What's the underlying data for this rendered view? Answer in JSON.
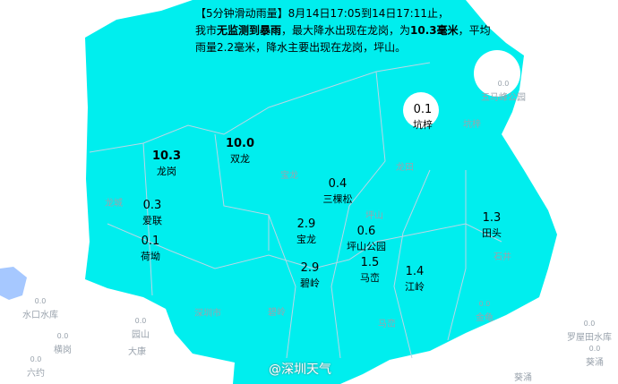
{
  "header": {
    "line1": "【5分钟滑动雨量】8月14日17:05到14日17:11止，",
    "line2_a": "我市",
    "line2_b": "无监测到暴雨",
    "line2_c": "，最大降水出现在龙岗，为",
    "line2_d": "10.3毫米",
    "line2_e": "，平均",
    "line3": "雨量2.2毫米，降水主要出现在龙岗，坪山。"
  },
  "colors": {
    "rain_fill": "#00eeee",
    "background": "#ffffff",
    "water": "#a6c8ff"
  },
  "stations": [
    {
      "name": "龙岗",
      "value": "10.3"
    },
    {
      "name": "双龙",
      "value": "10.0"
    },
    {
      "name": "坑梓",
      "value": "0.1"
    },
    {
      "name": "三棵松",
      "value": "0.4"
    },
    {
      "name": "爱联",
      "value": "0.3"
    },
    {
      "name": "荷坳",
      "value": "0.1"
    },
    {
      "name": "宝龙",
      "value": "2.9"
    },
    {
      "name": "坪山公园",
      "value": "0.6"
    },
    {
      "name": "田头",
      "value": "1.3"
    },
    {
      "name": "碧岭",
      "value": "2.9"
    },
    {
      "name": "马峦",
      "value": "1.5"
    },
    {
      "name": "江岭",
      "value": "1.4"
    }
  ],
  "background_places": [
    {
      "name": "五马峰公园",
      "value": "0.0"
    },
    {
      "name": "坑梓"
    },
    {
      "name": "龙田"
    },
    {
      "name": "宝龙"
    },
    {
      "name": "坪山"
    },
    {
      "name": "石井"
    },
    {
      "name": "金龟",
      "value": "0.0"
    },
    {
      "name": "深圳市"
    },
    {
      "name": "碧岭"
    },
    {
      "name": "马峦"
    },
    {
      "name": "龙城"
    },
    {
      "name": "园山",
      "value": "0.0"
    },
    {
      "name": "大康"
    },
    {
      "name": "水口水库",
      "value": "0.0"
    },
    {
      "name": "横岗",
      "value": "0.0"
    },
    {
      "name": "六约",
      "value": "0.0"
    },
    {
      "name": "罗屋田水库",
      "value": "0.0"
    },
    {
      "name": "葵涌",
      "value": "0.0"
    },
    {
      "name": "葵涌"
    }
  ],
  "watermark": "@深圳天气"
}
